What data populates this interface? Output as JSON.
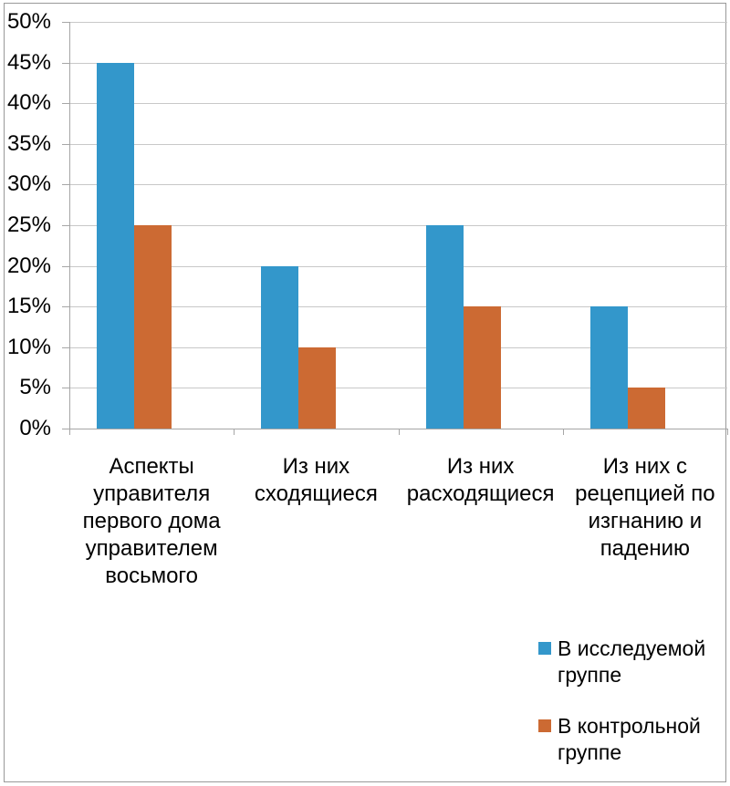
{
  "chart_data": {
    "type": "bar",
    "categories": [
      "Аспекты управителя первого дома управителем восьмого",
      "Из них сходящиеся",
      "Из них расходящиеся",
      "Из них с рецепцией по изгнанию и падению"
    ],
    "categories_lines": [
      [
        "Аспекты",
        "управителя",
        "первого дома",
        "управителем",
        "восьмого"
      ],
      [
        "Из них",
        "сходящиеся"
      ],
      [
        "Из них",
        "расходящиеся"
      ],
      [
        "Из них с",
        "рецепцией по",
        "изгнанию и",
        "падению"
      ]
    ],
    "series": [
      {
        "name": "В исследуемой группе",
        "legend_display": "В исследуемой\nгруппе",
        "color": "#3397CB",
        "values": [
          45,
          20,
          25,
          15
        ]
      },
      {
        "name": "В контрольной группе",
        "legend_display": "В контрольной\nгруппе",
        "color": "#CC6A33",
        "values": [
          25,
          10,
          15,
          5
        ]
      }
    ],
    "yticks": [
      "0%",
      "5%",
      "10%",
      "15%",
      "20%",
      "25%",
      "30%",
      "35%",
      "40%",
      "45%",
      "50%"
    ],
    "ylim": [
      0,
      50
    ],
    "ytick_step": 5,
    "grid": true,
    "legend_position": "bottom-right",
    "grid_color": "#C8C8C8",
    "axis_color": "#A6A6A6",
    "frame_color": "#999999",
    "text_color": "#000000"
  }
}
